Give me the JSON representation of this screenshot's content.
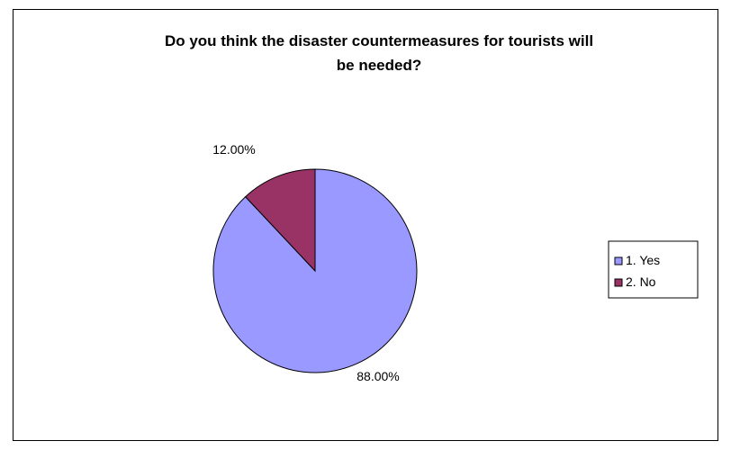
{
  "chart_data": {
    "type": "pie",
    "title": "Do you think the disaster countermeasures for tourists will be needed?",
    "title_lines": [
      "Do you think the disaster countermeasures for tourists will",
      "be needed?"
    ],
    "categories": [
      "1. Yes",
      "2. No"
    ],
    "values": [
      88.0,
      12.0
    ],
    "data_labels": [
      "88.00%",
      "12.00%"
    ],
    "colors": [
      "#9999FF",
      "#993366"
    ],
    "legend_position": "right"
  }
}
